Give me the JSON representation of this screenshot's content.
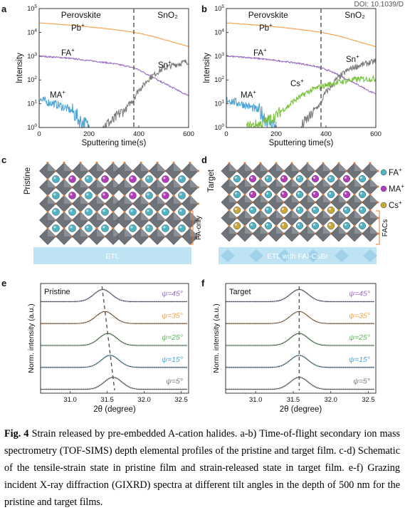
{
  "doi": "DOI: 10.1039/D",
  "panels": {
    "a": {
      "letter": "a"
    },
    "b": {
      "letter": "b"
    },
    "c": {
      "letter": "c",
      "side_label": "Pristine",
      "bracket_label": "FA-only",
      "etl_label": "ETL"
    },
    "d": {
      "letter": "d",
      "side_label": "Target",
      "bracket_label": "FACs",
      "etl_label": "ETL with FAI-CsBr"
    },
    "e": {
      "letter": "e",
      "inner_label": "Pristine"
    },
    "f": {
      "letter": "f",
      "inner_label": "Target"
    }
  },
  "legend_cd": {
    "items": [
      {
        "label": "FA⁺",
        "color": "#4fb3c4"
      },
      {
        "label": "MA⁺",
        "color": "#b23db8"
      },
      {
        "label": "Cs⁺",
        "color": "#c9a83a"
      }
    ]
  },
  "chart_data": [
    {
      "id": "a",
      "type": "line",
      "xlabel": "Sputtering time(s)",
      "ylabel": "Intensity",
      "xlim": [
        0,
        600
      ],
      "ylim_log10": [
        0,
        5
      ],
      "xticks": [
        "0",
        "200",
        "400",
        "600"
      ],
      "yticks": [
        "10⁰",
        "10¹",
        "10²",
        "10³",
        "10⁴",
        "10⁵"
      ],
      "region_labels": [
        "Perovskite",
        "SnO₂"
      ],
      "boundary_x": 380,
      "series": [
        {
          "name": "Pb⁺",
          "color": "#f5a24a",
          "x": [
            0,
            100,
            200,
            300,
            380,
            450,
            500,
            550,
            600
          ],
          "y": [
            25000,
            21000,
            17000,
            13000,
            10000,
            7000,
            5000,
            3500,
            2500
          ]
        },
        {
          "name": "FA⁺",
          "color": "#9a6bc0",
          "x": [
            0,
            100,
            200,
            300,
            380,
            430,
            480,
            530,
            570,
            600
          ],
          "y": [
            1000,
            850,
            650,
            480,
            320,
            180,
            90,
            50,
            30,
            22
          ]
        },
        {
          "name": "MA⁺",
          "color": "#4aa3d6",
          "x": [
            0,
            30,
            60,
            100,
            130,
            160,
            200
          ],
          "y": [
            15,
            12,
            10,
            7,
            5,
            2,
            1
          ]
        },
        {
          "name": "Sn⁺",
          "color": "#7a7a7a",
          "x": [
            250,
            300,
            350,
            380,
            420,
            460,
            500,
            550,
            600
          ],
          "y": [
            1,
            2,
            6,
            15,
            60,
            160,
            300,
            450,
            600
          ]
        }
      ]
    },
    {
      "id": "b",
      "type": "line",
      "xlabel": "Sputtering time(s)",
      "ylabel": "Intensity",
      "xlim": [
        0,
        600
      ],
      "ylim_log10": [
        0,
        5
      ],
      "xticks": [
        "0",
        "200",
        "400",
        "600"
      ],
      "yticks": [
        "10⁰",
        "10¹",
        "10²",
        "10³",
        "10⁴",
        "10⁵"
      ],
      "region_labels": [
        "Perovskite",
        "SnO₂"
      ],
      "boundary_x": 380,
      "series": [
        {
          "name": "Pb⁺",
          "color": "#f5a24a",
          "x": [
            0,
            100,
            200,
            300,
            380,
            450,
            500,
            550,
            600
          ],
          "y": [
            25000,
            21000,
            17000,
            13000,
            10000,
            7000,
            5000,
            3500,
            2500
          ]
        },
        {
          "name": "FA⁺",
          "color": "#9a6bc0",
          "x": [
            0,
            100,
            200,
            300,
            380,
            430,
            480,
            530,
            570,
            600
          ],
          "y": [
            1000,
            850,
            650,
            480,
            320,
            200,
            110,
            60,
            35,
            25
          ]
        },
        {
          "name": "MA⁺",
          "color": "#4aa3d6",
          "x": [
            0,
            30,
            60,
            100,
            130,
            160,
            200
          ],
          "y": [
            15,
            12,
            10,
            7,
            5,
            2,
            1
          ]
        },
        {
          "name": "Sn⁺",
          "color": "#7a7a7a",
          "x": [
            300,
            340,
            380,
            420,
            460,
            500,
            550,
            600
          ],
          "y": [
            1,
            3,
            10,
            50,
            150,
            300,
            450,
            600
          ]
        },
        {
          "name": "Cs⁺",
          "color": "#7cc242",
          "x": [
            80,
            150,
            200,
            250,
            300,
            350,
            400,
            450,
            500,
            550,
            600
          ],
          "y": [
            1,
            1.5,
            3,
            8,
            20,
            40,
            60,
            80,
            100,
            110,
            110
          ]
        }
      ]
    },
    {
      "id": "e",
      "type": "line",
      "xlabel": "2θ (degree)",
      "ylabel": "Norm. intensity (a.u.)",
      "xlim": [
        30.6,
        32.6
      ],
      "xticks": [
        "31.0",
        "31.5",
        "32.0",
        "32.5"
      ],
      "series": [
        {
          "name": "ψ=45°",
          "color": "#9a6bc0",
          "center": 31.44
        },
        {
          "name": "ψ=35°",
          "color": "#f5a24a",
          "center": 31.47
        },
        {
          "name": "ψ=25°",
          "color": "#5cb85c",
          "center": 31.51
        },
        {
          "name": "ψ=15°",
          "color": "#4aa3d6",
          "center": 31.54
        },
        {
          "name": "ψ=5°",
          "color": "#7a7a7a",
          "center": 31.58
        }
      ]
    },
    {
      "id": "f",
      "type": "line",
      "xlabel": "2θ (degree)",
      "ylabel": "Norm. intensity (a.u.)",
      "xlim": [
        30.6,
        32.6
      ],
      "xticks": [
        "31.0",
        "31.5",
        "32.0",
        "32.5"
      ],
      "series": [
        {
          "name": "ψ=45°",
          "color": "#9a6bc0",
          "center": 31.58
        },
        {
          "name": "ψ=35°",
          "color": "#f5a24a",
          "center": 31.58
        },
        {
          "name": "ψ=25°",
          "color": "#5cb85c",
          "center": 31.58
        },
        {
          "name": "ψ=15°",
          "color": "#4aa3d6",
          "center": 31.58
        },
        {
          "name": "ψ=5°",
          "color": "#7a7a7a",
          "center": 31.58
        }
      ]
    }
  ],
  "caption": {
    "label": "Fig. 4",
    "text": " Strain released by pre-embedded A-cation halides. a-b) Time-of-flight secondary ion mass spectrometry (TOF-SIMS) depth elemental profiles of the pristine and target film. c-d) Schematic of the tensile-strain state in pristine film and strain-released state in target film. e-f) Grazing incident X-ray diffraction (GIXRD) spectra at different tilt angles in the depth of 500 nm for the pristine and target films."
  }
}
